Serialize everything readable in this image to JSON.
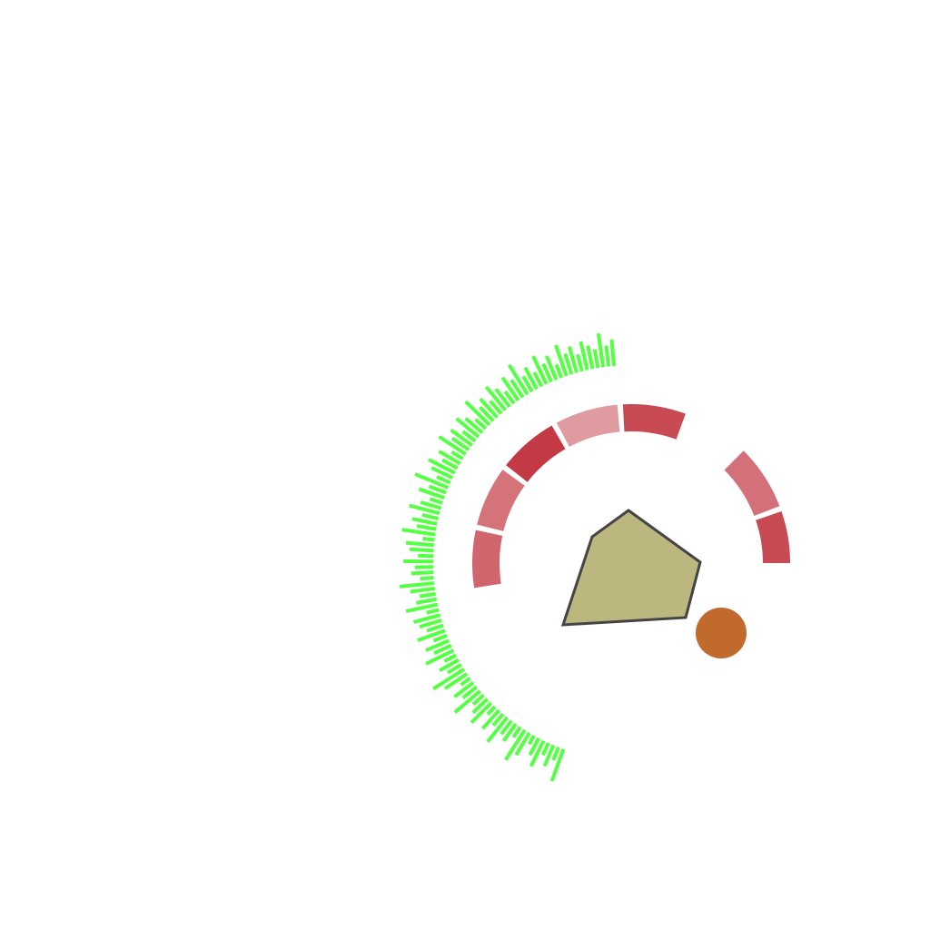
{
  "colors": {
    "background": "#ffffff",
    "histogram": "#55ff44",
    "polygon_fill": "#bcb67f",
    "polygon_stroke": "#444444",
    "dot": "#c06a2e"
  },
  "segments": [
    {
      "id": "seg-1",
      "color": "#d1656e"
    },
    {
      "id": "seg-2",
      "color": "#d5737a"
    },
    {
      "id": "seg-3",
      "color": "#c43a44"
    },
    {
      "id": "seg-4",
      "color": "#e09ba0"
    },
    {
      "id": "seg-5",
      "color": "#c84a52"
    },
    {
      "id": "seg-6",
      "color": "#d4707a"
    },
    {
      "id": "seg-7",
      "color": "#c84a52"
    }
  ],
  "histogram_values": [
    0.88,
    0.3,
    0.55,
    0.28,
    0.72,
    0.45,
    0.18,
    0.64,
    0.92,
    0.25,
    0.5,
    0.38,
    0.8,
    0.33,
    0.6,
    0.2,
    0.7,
    0.47,
    0.3,
    0.85,
    0.41,
    0.58,
    0.22,
    0.66,
    0.95,
    0.35,
    0.52,
    0.27,
    0.78,
    0.44,
    0.62,
    0.31,
    0.74,
    0.4,
    0.56,
    0.69,
    0.26,
    0.83,
    0.49,
    0.36,
    0.61,
    0.9,
    0.29,
    0.54,
    0.43,
    0.76,
    0.34,
    0.59,
    0.71,
    0.24,
    0.87,
    0.46,
    0.63,
    0.37,
    0.8,
    0.51,
    0.28,
    0.67,
    0.42,
    0.93,
    0.32,
    0.57,
    0.75,
    0.39,
    0.6,
    0.27,
    0.82,
    0.48,
    0.65,
    0.35,
    0.73,
    0.53,
    0.3,
    0.86,
    0.45,
    0.62,
    0.38,
    0.77,
    0.55,
    0.33,
    0.7,
    0.5,
    0.9,
    0.41,
    0.6,
    0.36,
    0.79,
    0.47,
    0.64,
    0.31,
    0.84,
    0.52,
    0.68,
    0.4,
    0.74,
    0.58,
    0.44,
    0.88,
    0.5,
    0.66
  ]
}
